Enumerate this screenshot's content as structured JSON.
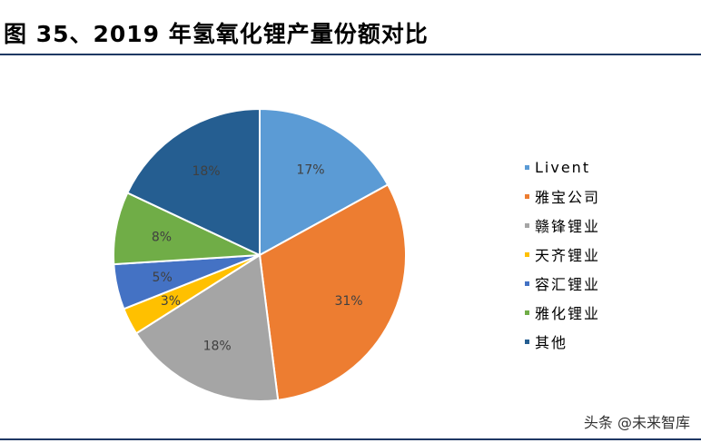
{
  "title": "图 35、2019 年氢氧化锂产量份额对比",
  "rule_color": "#1F3864",
  "watermark": "头条 @未来智库",
  "chart_data": {
    "type": "pie",
    "title": "",
    "legend_position": "right",
    "slices": [
      {
        "name": "Livent",
        "value": 17,
        "label": "17%",
        "color": "#5B9BD5"
      },
      {
        "name": "雅宝公司",
        "value": 31,
        "label": "31%",
        "color": "#ED7D31"
      },
      {
        "name": "赣锋锂业",
        "value": 18,
        "label": "18%",
        "color": "#A5A5A5"
      },
      {
        "name": "天齐锂业",
        "value": 3,
        "label": "3%",
        "color": "#FFC000"
      },
      {
        "name": "容汇锂业",
        "value": 5,
        "label": "5%",
        "color": "#4472C4"
      },
      {
        "name": "雅化锂业",
        "value": 8,
        "label": "8%",
        "color": "#70AD47"
      },
      {
        "name": "其他",
        "value": 18,
        "label": "18%",
        "color": "#255E91"
      }
    ]
  }
}
